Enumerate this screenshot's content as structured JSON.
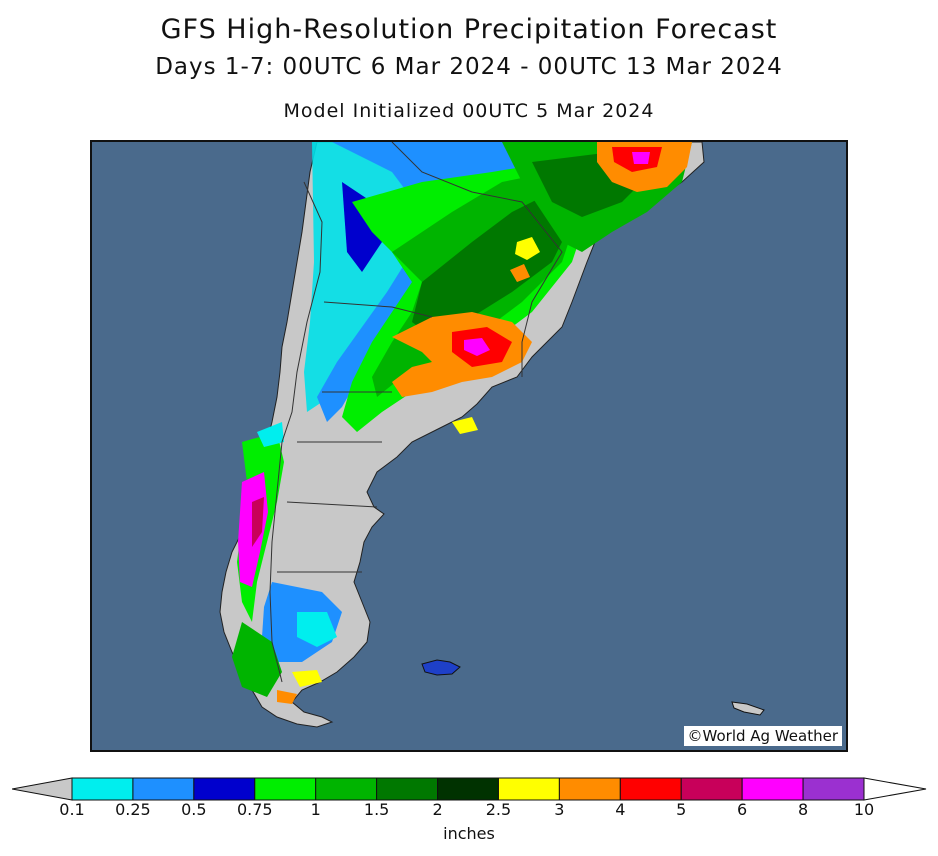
{
  "header": {
    "title": "GFS High-Resolution Precipitation Forecast",
    "period": "Days 1-7: 00UTC 6 Mar 2024 - 00UTC 13 Mar 2024",
    "init": "Model Initialized 00UTC 5 Mar 2024"
  },
  "map": {
    "credit": "©World Ag Weather",
    "ocean_color": "#4a6a8c",
    "land_dry_color": "#c8c8c8"
  },
  "legend": {
    "units": "inches",
    "ticks": [
      "0.1",
      "0.25",
      "0.5",
      "0.75",
      "1",
      "1.5",
      "2",
      "2.5",
      "3",
      "4",
      "5",
      "6",
      "8",
      "10"
    ],
    "colors": [
      "#00eeee",
      "#1e90ff",
      "#0000cd",
      "#00ee00",
      "#00b400",
      "#007800",
      "#003200",
      "#ffff00",
      "#ff8c00",
      "#ff0000",
      "#c8005a",
      "#ff00ff",
      "#9b30d0"
    ],
    "below_color": "#c8c8c8",
    "above_color": "#ffffff"
  }
}
